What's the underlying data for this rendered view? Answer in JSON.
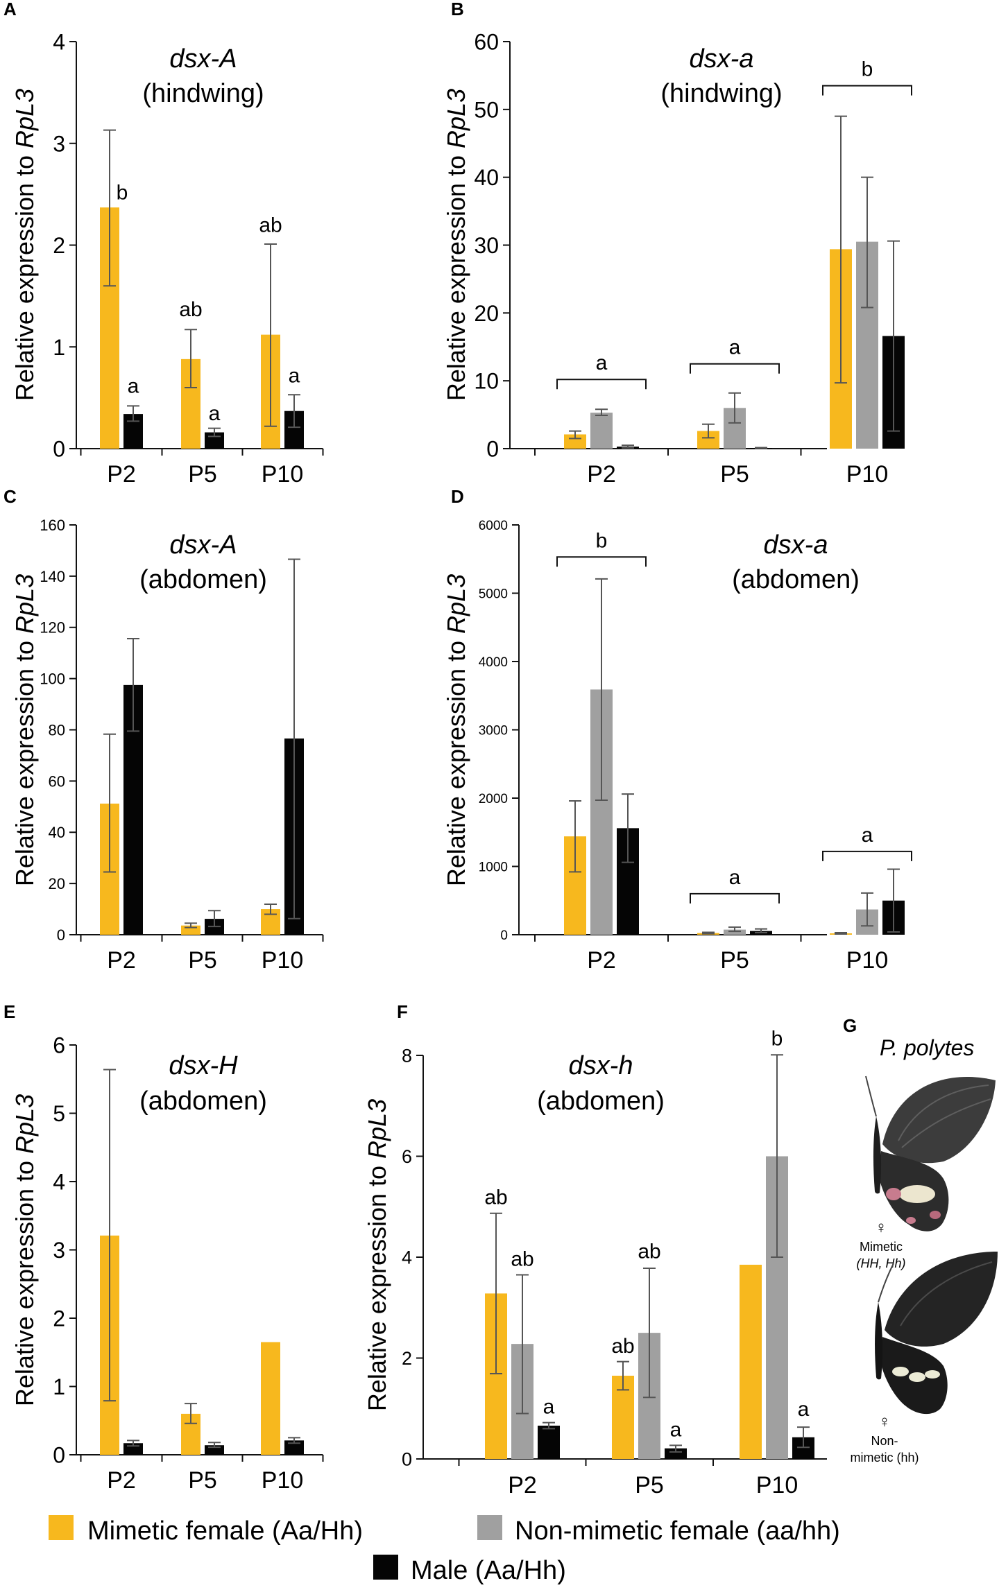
{
  "colors": {
    "mimetic": "#f7b81e",
    "nonmimetic": "#a0a0a0",
    "male": "#050505",
    "axis": "#111111",
    "error": "#555555"
  },
  "chart_data": [
    {
      "panel": "A",
      "type": "bar",
      "gene": "dsx-A",
      "tissue": "(hindwing)",
      "ylabel": "Relative expression to RpL3",
      "ylim": [
        0,
        4
      ],
      "yticks": [
        "0",
        "1",
        "2",
        "3",
        "4"
      ],
      "categories": [
        "P2",
        "P5",
        "P10"
      ],
      "series": [
        {
          "name": "Mimetic female (Aa/Hh)",
          "key": "mimetic",
          "values": [
            2.37,
            0.88,
            1.12
          ],
          "err_low": [
            1.6,
            0.6,
            0.22
          ],
          "err_high": [
            3.13,
            1.17,
            2.01
          ]
        },
        {
          "name": "Male (Aa/Hh)",
          "key": "male",
          "values": [
            0.34,
            0.16,
            0.37
          ],
          "err_low": [
            0.27,
            0.12,
            0.21
          ],
          "err_high": [
            0.42,
            0.2,
            0.53
          ]
        }
      ],
      "letters": [
        {
          "text": "b",
          "cat": 0,
          "series": 0,
          "y": 2.45
        },
        {
          "text": "a",
          "cat": 0,
          "series": 1,
          "y": 0.55
        },
        {
          "text": "ab",
          "cat": 1,
          "series": 0,
          "y": 1.3
        },
        {
          "text": "a",
          "cat": 1,
          "series": 1,
          "y": 0.28
        },
        {
          "text": "ab",
          "cat": 2,
          "series": 0,
          "y": 2.13
        },
        {
          "text": "a",
          "cat": 2,
          "series": 1,
          "y": 0.65
        }
      ],
      "brackets": []
    },
    {
      "panel": "B",
      "type": "bar",
      "gene": "dsx-a",
      "tissue": "(hindwing)",
      "ylabel": "Relative expression to RpL3",
      "ylim": [
        0,
        60
      ],
      "yticks": [
        "0",
        "10",
        "20",
        "30",
        "40",
        "50",
        "60"
      ],
      "categories": [
        "P2",
        "P5",
        "P10"
      ],
      "series": [
        {
          "name": "Mimetic female (Aa/Hh)",
          "key": "mimetic",
          "values": [
            2.1,
            2.6,
            29.4
          ],
          "err_low": [
            1.5,
            1.6,
            9.7
          ],
          "err_high": [
            2.6,
            3.6,
            49.0
          ]
        },
        {
          "name": "Non-mimetic female (aa/hh)",
          "key": "nonmimetic",
          "values": [
            5.3,
            6.0,
            30.5
          ],
          "err_low": [
            4.9,
            3.8,
            20.8
          ],
          "err_high": [
            5.8,
            8.2,
            40.0
          ]
        },
        {
          "name": "Male (Aa/Hh)",
          "key": "male",
          "values": [
            0.3,
            0.1,
            16.6
          ],
          "err_low": [
            0.1,
            0.05,
            2.6
          ],
          "err_high": [
            0.5,
            0.15,
            30.6
          ]
        }
      ],
      "letters": [],
      "brackets": [
        {
          "text": "b",
          "cat": 2,
          "y": 53.5
        },
        {
          "text": "a",
          "cat": 0,
          "y": 10.2
        },
        {
          "text": "a",
          "cat": 1,
          "y": 12.5
        }
      ]
    },
    {
      "panel": "C",
      "type": "bar",
      "gene": "dsx-A",
      "tissue": "(abdomen)",
      "ylabel": "Relative expression to RpL3",
      "ylim": [
        0,
        160
      ],
      "yticks": [
        "0",
        "20",
        "40",
        "60",
        "80",
        "100",
        "120",
        "140",
        "160"
      ],
      "categories": [
        "P2",
        "P5",
        "P10"
      ],
      "series": [
        {
          "name": "Mimetic female (Aa/Hh)",
          "key": "mimetic",
          "values": [
            51.2,
            3.6,
            10.0
          ],
          "err_low": [
            24.5,
            2.8,
            8.0
          ],
          "err_high": [
            78.3,
            4.5,
            11.9
          ]
        },
        {
          "name": "Male (Aa/Hh)",
          "key": "male",
          "values": [
            97.5,
            6.2,
            76.6
          ],
          "err_low": [
            79.5,
            3.2,
            6.3
          ],
          "err_high": [
            115.6,
            9.4,
            146.6
          ]
        }
      ],
      "letters": [],
      "brackets": []
    },
    {
      "panel": "D",
      "type": "bar",
      "gene": "dsx-a",
      "tissue": "(abdomen)",
      "ylabel": "Relative expression to RpL3",
      "ylim": [
        0,
        6000
      ],
      "yticks": [
        "0",
        "1000",
        "2000",
        "3000",
        "4000",
        "5000",
        "6000"
      ],
      "categories": [
        "P2",
        "P5",
        "P10"
      ],
      "series": [
        {
          "name": "Mimetic female (Aa/Hh)",
          "key": "mimetic",
          "values": [
            1440,
            25,
            20
          ],
          "err_low": [
            920,
            15,
            10
          ],
          "err_high": [
            1960,
            35,
            30
          ]
        },
        {
          "name": "Non-mimetic female (aa/hh)",
          "key": "nonmimetic",
          "values": [
            3590,
            75,
            370
          ],
          "err_low": [
            1970,
            50,
            130
          ],
          "err_high": [
            5210,
            110,
            610
          ]
        },
        {
          "name": "Male (Aa/Hh)",
          "key": "male",
          "values": [
            1560,
            55,
            500
          ],
          "err_low": [
            1060,
            30,
            40
          ],
          "err_high": [
            2060,
            85,
            960
          ]
        }
      ],
      "letters": [],
      "brackets": [
        {
          "text": "b",
          "cat": 0,
          "y": 5530
        },
        {
          "text": "a",
          "cat": 1,
          "y": 600
        },
        {
          "text": "a",
          "cat": 2,
          "y": 1220
        }
      ]
    },
    {
      "panel": "E",
      "type": "bar",
      "gene": "dsx-H",
      "tissue": "(abdomen)",
      "ylabel": "Relative expression to RpL3",
      "ylim": [
        0,
        6
      ],
      "yticks": [
        "0",
        "1",
        "2",
        "3",
        "4",
        "5",
        "6"
      ],
      "categories": [
        "P2",
        "P5",
        "P10"
      ],
      "series": [
        {
          "name": "Mimetic female (Aa/Hh)",
          "key": "mimetic",
          "values": [
            3.21,
            0.6,
            1.65
          ],
          "err_low": [
            0.79,
            0.46,
            null
          ],
          "err_high": [
            5.64,
            0.75,
            null
          ]
        },
        {
          "name": "Male (Aa/Hh)",
          "key": "male",
          "values": [
            0.17,
            0.14,
            0.21
          ],
          "err_low": [
            0.13,
            0.11,
            0.17
          ],
          "err_high": [
            0.21,
            0.18,
            0.25
          ]
        }
      ],
      "letters": [],
      "brackets": []
    },
    {
      "panel": "F",
      "type": "bar",
      "gene": "dsx-h",
      "tissue": "(abdomen)",
      "ylabel": "Relative expression to RpL3",
      "ylim": [
        0,
        8
      ],
      "yticks": [
        "0",
        "2",
        "4",
        "6",
        "8"
      ],
      "categories": [
        "P2",
        "P5",
        "P10"
      ],
      "series": [
        {
          "name": "Mimetic female (Aa/Hh)",
          "key": "mimetic",
          "values": [
            3.28,
            1.65,
            3.85
          ],
          "err_low": [
            1.69,
            1.37,
            null
          ],
          "err_high": [
            4.87,
            1.93,
            null
          ]
        },
        {
          "name": "Non-mimetic female (aa/hh)",
          "key": "nonmimetic",
          "values": [
            2.28,
            2.5,
            6.0
          ],
          "err_low": [
            0.9,
            1.22,
            4.0
          ],
          "err_high": [
            3.65,
            3.78,
            8.01
          ]
        },
        {
          "name": "Male (Aa/Hh)",
          "key": "male",
          "values": [
            0.66,
            0.21,
            0.43
          ],
          "err_low": [
            0.6,
            0.14,
            0.23
          ],
          "err_high": [
            0.72,
            0.27,
            0.63
          ]
        }
      ],
      "letters": [
        {
          "text": "ab",
          "cat": 0,
          "series": 0,
          "y": 5.05
        },
        {
          "text": "ab",
          "cat": 0,
          "series": 1,
          "y": 3.83
        },
        {
          "text": "a",
          "cat": 0,
          "series": 2,
          "y": 0.9
        },
        {
          "text": "ab",
          "cat": 1,
          "series": 0,
          "y": 2.1
        },
        {
          "text": "ab",
          "cat": 1,
          "series": 1,
          "y": 3.98
        },
        {
          "text": "a",
          "cat": 1,
          "series": 2,
          "y": 0.45
        },
        {
          "text": "b",
          "cat": 2,
          "series": 1,
          "y": 8.2
        },
        {
          "text": "a",
          "cat": 2,
          "series": 2,
          "y": 0.85
        }
      ],
      "brackets": []
    }
  ],
  "panel_g": {
    "letter": "G",
    "species": "P. polytes",
    "mimetic_symbol": "♀",
    "mimetic_label": "Mimetic",
    "mimetic_genotype": "(HH, Hh)",
    "nonmimetic_symbol": "♀",
    "nonmimetic_label_1": "Non-",
    "nonmimetic_label_2": "mimetic (hh)"
  },
  "legend": {
    "mimetic": "Mimetic female (Aa/Hh)",
    "nonmimetic": "Non-mimetic female (aa/hh)",
    "male": "Male (Aa/Hh)"
  }
}
